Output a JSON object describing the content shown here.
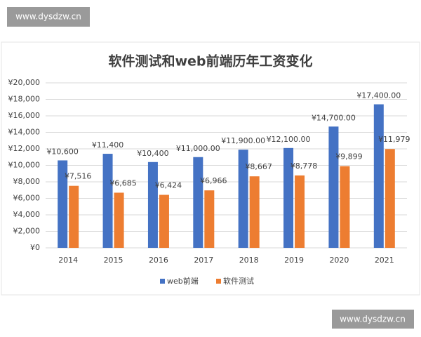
{
  "watermarks": [
    "www.dysdzw.cn",
    "www.dysdzw.cn"
  ],
  "chart_data": {
    "type": "bar",
    "title": "软件测试和web前端历年工资变化",
    "categories": [
      "2014",
      "2015",
      "2016",
      "2017",
      "2018",
      "2019",
      "2020",
      "2021"
    ],
    "series": [
      {
        "name": "web前端",
        "color": "#4472c4",
        "values": [
          10600,
          11400,
          10400,
          11000,
          11900,
          12100,
          14700,
          17400
        ],
        "value_labels": [
          "¥10,600",
          "¥11,400",
          "¥10,400",
          "¥11,000.00",
          "¥11,900.00",
          "¥12,100.00",
          "¥14,700.00",
          "¥17,400.00"
        ]
      },
      {
        "name": "软件测试",
        "color": "#ed7d31",
        "values": [
          7516,
          6685,
          6424,
          6966,
          8667,
          8778,
          9899,
          11979
        ],
        "value_labels": [
          "¥7,516",
          "¥6,685",
          "¥6,424",
          "¥6,966",
          "¥8,667",
          "¥8,778",
          "¥9,899",
          "¥11,979"
        ]
      }
    ],
    "ylim": [
      0,
      20000
    ],
    "yticks": [
      {
        "value": 0,
        "label": "¥0"
      },
      {
        "value": 2000,
        "label": "¥2,000"
      },
      {
        "value": 4000,
        "label": "¥4,000"
      },
      {
        "value": 6000,
        "label": "¥6,000"
      },
      {
        "value": 8000,
        "label": "¥8,000"
      },
      {
        "value": 10000,
        "label": "¥10,000"
      },
      {
        "value": 12000,
        "label": "¥12,000"
      },
      {
        "value": 14000,
        "label": "¥14,000"
      },
      {
        "value": 16000,
        "label": "¥16,000"
      },
      {
        "value": 18000,
        "label": "¥18,000"
      },
      {
        "value": 20000,
        "label": "¥20,000"
      }
    ],
    "grid": true,
    "legend": "bottom"
  }
}
